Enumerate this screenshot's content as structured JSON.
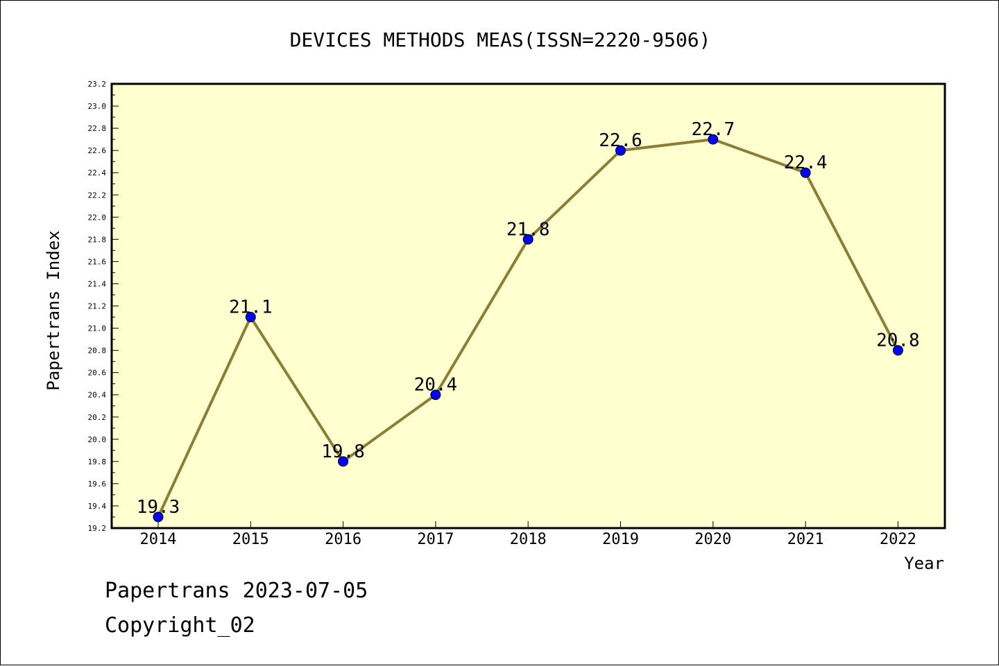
{
  "chart_data": {
    "type": "line",
    "title": "DEVICES METHODS MEAS(ISSN=2220-9506)",
    "xlabel": "Year",
    "ylabel": "Papertrans Index",
    "categories": [
      "2014",
      "2015",
      "2016",
      "2017",
      "2018",
      "2019",
      "2020",
      "2021",
      "2022"
    ],
    "values": [
      19.3,
      21.1,
      19.8,
      20.4,
      21.8,
      22.6,
      22.7,
      22.4,
      20.8
    ],
    "data_labels": [
      "19.3",
      "21.1",
      "19.8",
      "20.4",
      "21.8",
      "22.6",
      "22.7",
      "22.4",
      "20.8"
    ],
    "ylim": [
      19.2,
      23.2
    ],
    "yticks": [
      "19.2",
      "19.4",
      "19.6",
      "19.8",
      "20.0",
      "20.2",
      "20.4",
      "20.6",
      "20.8",
      "21.0",
      "21.2",
      "21.4",
      "21.6",
      "21.8",
      "22.0",
      "22.2",
      "22.4",
      "22.6",
      "22.8",
      "23.0",
      "23.2"
    ],
    "grid": false,
    "colors": {
      "plot_background": "#ffffd0",
      "line": "#8b7d36",
      "marker": "#0000ff"
    }
  },
  "footer": {
    "line1": "Papertrans 2023-07-05",
    "line2": "Copyright_02"
  }
}
